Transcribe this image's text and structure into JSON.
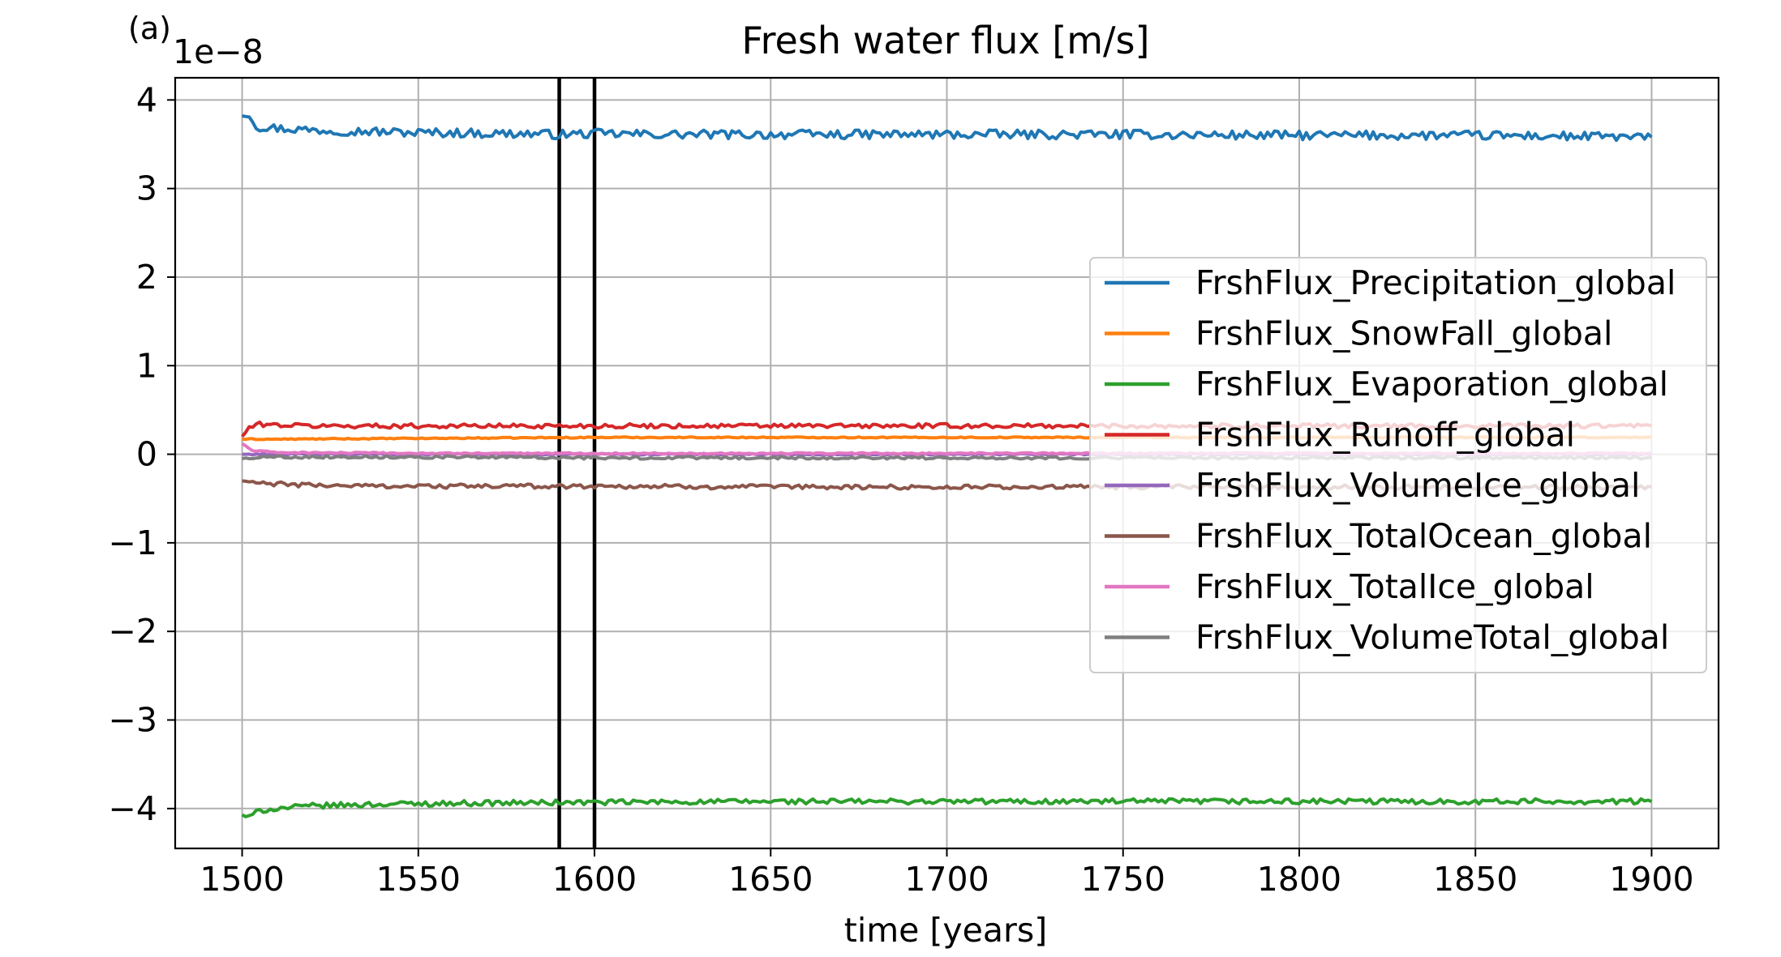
{
  "chart_data": {
    "type": "line",
    "panel_label": "(a)",
    "title": "Fresh water flux [m/s]",
    "xlabel": "time [years]",
    "ylabel": "",
    "y_multiplier": "1e−8",
    "xlim": [
      1481,
      1919
    ],
    "ylim": [
      -4.45,
      4.25
    ],
    "x_ticks": [
      1500,
      1550,
      1600,
      1650,
      1700,
      1750,
      1800,
      1850,
      1900
    ],
    "x_tick_labels": [
      "1500",
      "1550",
      "1600",
      "1650",
      "1700",
      "1750",
      "1800",
      "1850",
      "1900"
    ],
    "y_ticks": [
      -4,
      -3,
      -2,
      -1,
      0,
      1,
      2,
      3,
      4
    ],
    "y_tick_labels": [
      "−4",
      "−3",
      "−2",
      "−1",
      "0",
      "1",
      "2",
      "3",
      "4"
    ],
    "grid": true,
    "legend_position": "center-right",
    "vertical_lines": [
      1590,
      1600
    ],
    "vertical_line_color": "#000000",
    "series": [
      {
        "name": "FrshFlux_Precipitation_global",
        "color": "#1f77b4",
        "x": [
          1500,
          1502,
          1504,
          1510,
          1520,
          1530,
          1540,
          1550,
          1560,
          1570,
          1580,
          1590,
          1600,
          1620,
          1650,
          1700,
          1750,
          1800,
          1850,
          1900
        ],
        "y": [
          3.82,
          3.85,
          3.7,
          3.68,
          3.66,
          3.65,
          3.64,
          3.63,
          3.63,
          3.62,
          3.62,
          3.61,
          3.62,
          3.61,
          3.61,
          3.61,
          3.61,
          3.6,
          3.6,
          3.58
        ],
        "noise": 0.05
      },
      {
        "name": "FrshFlux_SnowFall_global",
        "color": "#ff7f0e",
        "x": [
          1500,
          1510,
          1600,
          1700,
          1800,
          1900
        ],
        "y": [
          0.17,
          0.17,
          0.19,
          0.19,
          0.19,
          0.19
        ],
        "noise": 0.006
      },
      {
        "name": "FrshFlux_Evaporation_global",
        "color": "#2ca02c",
        "x": [
          1500,
          1502,
          1505,
          1510,
          1520,
          1540,
          1560,
          1600,
          1650,
          1700,
          1750,
          1800,
          1850,
          1900
        ],
        "y": [
          -4.07,
          -4.1,
          -4.02,
          -4.0,
          -3.97,
          -3.95,
          -3.94,
          -3.93,
          -3.92,
          -3.92,
          -3.92,
          -3.92,
          -3.92,
          -3.92
        ],
        "noise": 0.03
      },
      {
        "name": "FrshFlux_Runoff_global",
        "color": "#d62728",
        "x": [
          1500,
          1502,
          1505,
          1510,
          1520,
          1550,
          1600,
          1650,
          1700,
          1750,
          1800,
          1850,
          1900
        ],
        "y": [
          0.2,
          0.3,
          0.34,
          0.33,
          0.32,
          0.32,
          0.32,
          0.32,
          0.32,
          0.32,
          0.32,
          0.32,
          0.32
        ],
        "noise": 0.025
      },
      {
        "name": "FrshFlux_VolumeIce_global",
        "color": "#9467bd",
        "x": [
          1500,
          1900
        ],
        "y": [
          0.0,
          0.0
        ],
        "noise": 0.008
      },
      {
        "name": "FrshFlux_TotalOcean_global",
        "color": "#8c564b",
        "x": [
          1500,
          1505,
          1520,
          1550,
          1600,
          1650,
          1700,
          1750,
          1800,
          1850,
          1900
        ],
        "y": [
          -0.3,
          -0.33,
          -0.35,
          -0.36,
          -0.36,
          -0.37,
          -0.37,
          -0.37,
          -0.37,
          -0.37,
          -0.37
        ],
        "noise": 0.025
      },
      {
        "name": "FrshFlux_TotalIce_global",
        "color": "#e377c2",
        "x": [
          1500,
          1503,
          1510,
          1550,
          1600,
          1700,
          1800,
          1900
        ],
        "y": [
          0.12,
          0.04,
          0.02,
          0.01,
          0.01,
          0.01,
          0.01,
          0.01
        ],
        "noise": 0.008
      },
      {
        "name": "FrshFlux_VolumeTotal_global",
        "color": "#7f7f7f",
        "x": [
          1500,
          1505,
          1550,
          1600,
          1700,
          1800,
          1900
        ],
        "y": [
          -0.05,
          -0.03,
          -0.03,
          -0.04,
          -0.04,
          -0.04,
          -0.04
        ],
        "noise": 0.015
      }
    ]
  }
}
